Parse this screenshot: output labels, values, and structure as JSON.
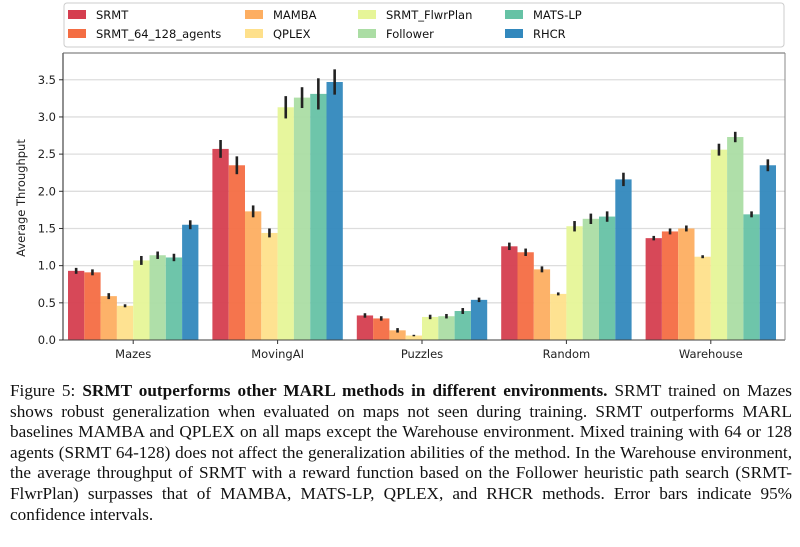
{
  "chart_data": {
    "type": "bar",
    "title": "",
    "xlabel": "",
    "ylabel": "Average Throughput",
    "ylim": [
      0,
      3.86
    ],
    "yticks": [
      0.0,
      0.5,
      1.0,
      1.5,
      2.0,
      2.5,
      3.0,
      3.5
    ],
    "ytick_labels": [
      "0.0",
      "0.5",
      "1.0",
      "1.5",
      "2.0",
      "2.5",
      "3.0",
      "3.5"
    ],
    "grid": "y",
    "legend_position": "top",
    "categories": [
      "Mazes",
      "MovingAI",
      "Puzzles",
      "Random",
      "Warehouse"
    ],
    "series": [
      {
        "name": "SRMT",
        "color": "#d53e4f",
        "values": [
          0.93,
          2.57,
          0.33,
          1.26,
          1.37
        ],
        "ci": [
          0.04,
          0.12,
          0.03,
          0.05,
          0.03
        ]
      },
      {
        "name": "SRMT_64_128_agents",
        "color": "#f46d43",
        "values": [
          0.91,
          2.35,
          0.29,
          1.18,
          1.46
        ],
        "ci": [
          0.04,
          0.12,
          0.03,
          0.05,
          0.04
        ]
      },
      {
        "name": "MAMBA",
        "color": "#fdae61",
        "values": [
          0.59,
          1.73,
          0.13,
          0.95,
          1.5
        ],
        "ci": [
          0.04,
          0.08,
          0.03,
          0.04,
          0.04
        ]
      },
      {
        "name": "QPLEX",
        "color": "#fee08b",
        "values": [
          0.46,
          1.44,
          0.06,
          0.62,
          1.12
        ],
        "ci": [
          0.02,
          0.06,
          0.01,
          0.02,
          0.02
        ]
      },
      {
        "name": "SRMT_FlwrPlan",
        "color": "#e6f598",
        "values": [
          1.07,
          3.13,
          0.31,
          1.53,
          2.56
        ],
        "ci": [
          0.06,
          0.15,
          0.03,
          0.07,
          0.08
        ]
      },
      {
        "name": "Follower",
        "color": "#abdda4",
        "values": [
          1.14,
          3.26,
          0.32,
          1.63,
          2.73
        ],
        "ci": [
          0.05,
          0.14,
          0.03,
          0.07,
          0.07
        ]
      },
      {
        "name": "MATS-LP",
        "color": "#66c2a5",
        "values": [
          1.11,
          3.31,
          0.39,
          1.66,
          1.69
        ],
        "ci": [
          0.05,
          0.21,
          0.04,
          0.07,
          0.04
        ]
      },
      {
        "name": "RHCR",
        "color": "#3288bd",
        "values": [
          1.55,
          3.47,
          0.54,
          2.16,
          2.35
        ],
        "ci": [
          0.06,
          0.17,
          0.03,
          0.09,
          0.08
        ]
      }
    ]
  },
  "caption": {
    "figure_label": "Figure 5:",
    "bold_title": "SRMT outperforms other MARL methods in different environments.",
    "body": "SRMT trained on Mazes shows robust generalization when evaluated on maps not seen during training. SRMT outperforms MARL baselines MAMBA and QPLEX on all maps except the Warehouse environment. Mixed training with 64 or 128 agents (SRMT 64-128) does not affect the generalization abilities of the method.  In the Warehouse environment, the average throughput of SRMT with a reward function based on the Follower heuristic path search (SRMT-FlwrPlan) surpasses that of MAMBA, MATS-LP, QPLEX, and RHCR methods. Error bars indicate 95% confidence intervals."
  }
}
